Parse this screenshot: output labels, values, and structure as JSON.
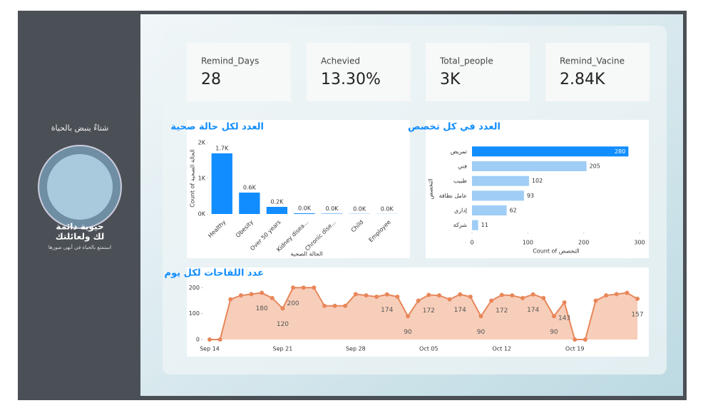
{
  "sidebar": {
    "headline": "شتاءٌ ينبض بالحياة",
    "line1": "حيوية دائمة",
    "line2": "لك ولعائلتك",
    "tagline": "استمتع بالحياة في أبهى صورها"
  },
  "cards": [
    {
      "label": "Remind_Days",
      "value": "28"
    },
    {
      "label": "Achevied",
      "value": "13.30%"
    },
    {
      "label": "Total_people",
      "value": "3K"
    },
    {
      "label": "Remind_Vacine",
      "value": "2.84K"
    }
  ],
  "chart_data": [
    {
      "type": "bar",
      "title": "العدد لكل حالة صحية",
      "x_label": "الحالة الصحية",
      "y_label": "Count of الحالة الصحية",
      "categories": [
        "Healthy",
        "Obesity",
        "Over 50 years",
        "Kidney disea...",
        "Chronic dise...",
        "Child",
        "Employee"
      ],
      "values": [
        1700,
        600,
        200,
        20,
        10,
        5,
        3
      ],
      "value_labels": [
        "1.7K",
        "0.6K",
        "0.2K",
        "0.0K",
        "0.0K",
        "0.0K",
        "0.0K"
      ],
      "color": "#118dff",
      "ylim": [
        0,
        2000
      ],
      "yticks": [
        {
          "value": 0,
          "label": "0K"
        },
        {
          "value": 1000,
          "label": "1K"
        },
        {
          "value": 2000,
          "label": "2K"
        }
      ]
    },
    {
      "type": "hbar",
      "title": "العدد في كل تخصص",
      "x_label": "Count of التخصص",
      "y_label": "التخصص",
      "categories": [
        "تمريض",
        "فني",
        "طبيب",
        "عامل نظافة",
        "إداري",
        "شركة"
      ],
      "values": [
        280,
        205,
        102,
        93,
        62,
        11
      ],
      "colors": [
        "#118dff",
        "#9fcdf5",
        "#9fcdf5",
        "#9fcdf5",
        "#9fcdf5",
        "#9fcdf5"
      ],
      "xlim": [
        0,
        300
      ],
      "xticks": [
        0,
        100,
        200,
        300
      ]
    },
    {
      "type": "area",
      "title": "عدد اللقاحات لكل يوم",
      "x": [
        "Sep 14",
        "Sep 15",
        "Sep 16",
        "Sep 17",
        "Sep 18",
        "Sep 19",
        "Sep 20",
        "Sep 21",
        "Sep 22",
        "Sep 23",
        "Sep 24",
        "Sep 25",
        "Sep 26",
        "Sep 27",
        "Sep 28",
        "Sep 29",
        "Sep 30",
        "Oct 01",
        "Oct 02",
        "Oct 03",
        "Oct 04",
        "Oct 05",
        "Oct 06",
        "Oct 07",
        "Oct 08",
        "Oct 09",
        "Oct 10",
        "Oct 11",
        "Oct 12",
        "Oct 13",
        "Oct 14",
        "Oct 15",
        "Oct 16",
        "Oct 17",
        "Oct 18",
        "Oct 19",
        "Oct 20",
        "Oct 21",
        "Oct 22",
        "Oct 23",
        "Oct 24",
        "Oct 25"
      ],
      "values": [
        0,
        0,
        155,
        170,
        175,
        180,
        160,
        120,
        200,
        200,
        200,
        130,
        130,
        130,
        175,
        170,
        165,
        174,
        165,
        90,
        150,
        172,
        170,
        155,
        174,
        165,
        90,
        150,
        172,
        170,
        160,
        174,
        160,
        90,
        143,
        0,
        0,
        150,
        170,
        175,
        180,
        157
      ],
      "value_labels": [
        null,
        null,
        null,
        null,
        null,
        "180",
        null,
        "120",
        "200",
        null,
        null,
        null,
        null,
        null,
        null,
        null,
        null,
        "174",
        null,
        "90",
        null,
        "172",
        null,
        null,
        "174",
        null,
        "90",
        null,
        "172",
        null,
        null,
        "174",
        null,
        "90",
        "143",
        null,
        null,
        null,
        null,
        null,
        null,
        "157"
      ],
      "color": "#e8875a",
      "ylim": [
        0,
        220
      ],
      "yticks": [
        0,
        100,
        200
      ],
      "xticks": [
        "Sep 14",
        "Sep 21",
        "Sep 28",
        "Oct 05",
        "Oct 12",
        "Oct 19"
      ]
    }
  ]
}
